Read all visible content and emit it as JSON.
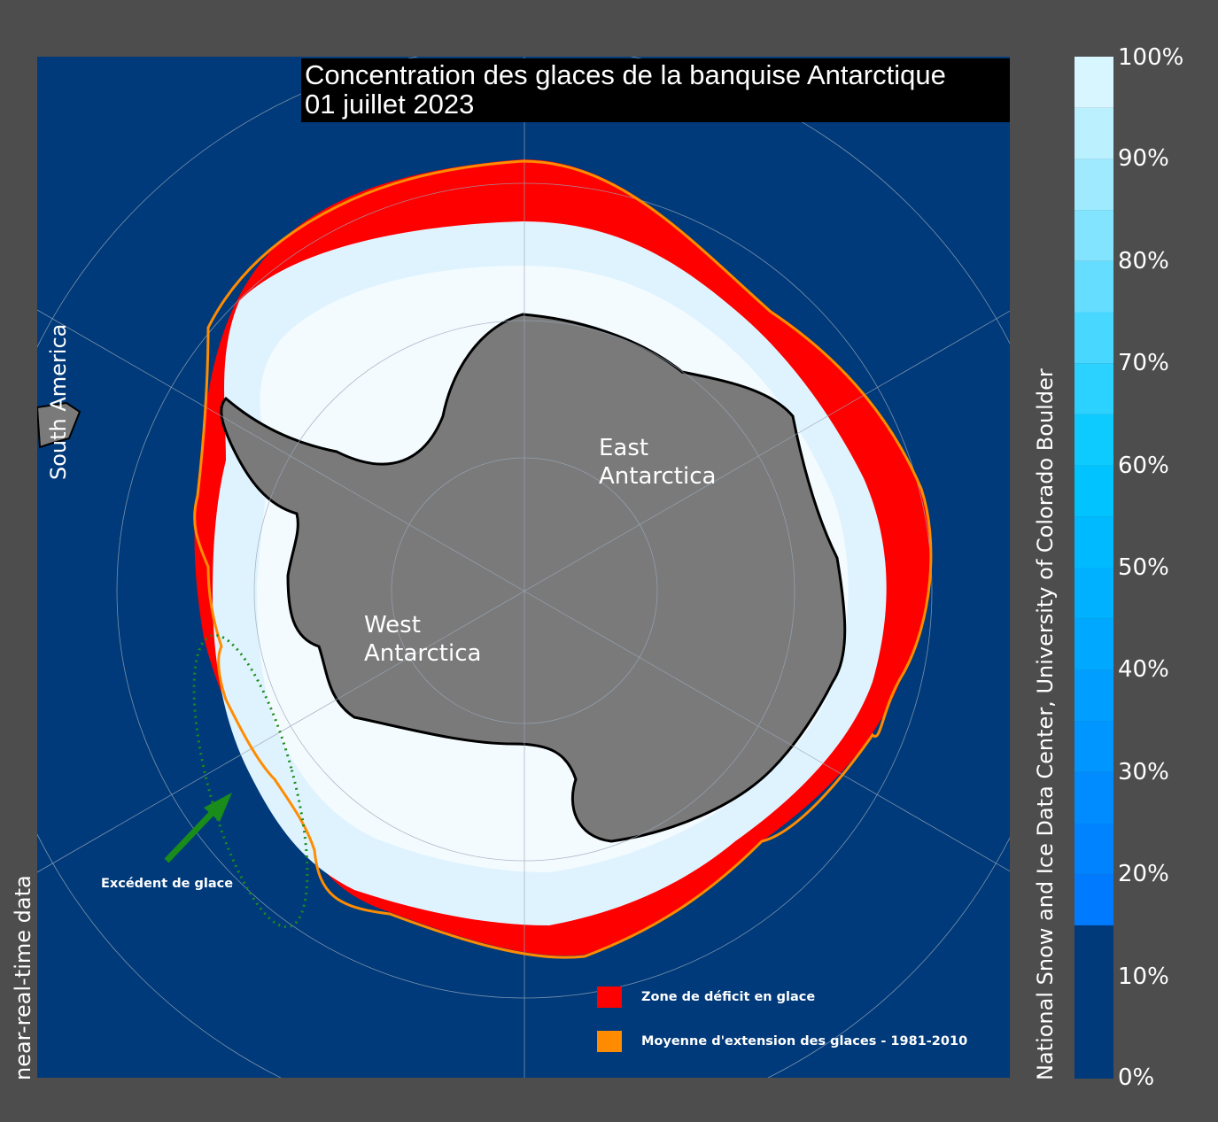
{
  "title": {
    "line1": "Concentration des glaces de la banquise Antarctique",
    "line2": "01 juillet 2023"
  },
  "regions": {
    "east": [
      "East",
      "Antarctica"
    ],
    "west": [
      "West",
      "Antarctica"
    ],
    "south_america": "South America"
  },
  "side_labels": {
    "left": "near-real-time data",
    "right": "National Snow and Ice Data Center, University of Colorado Boulder"
  },
  "annotation": {
    "text": "Excédent de glace",
    "color": "#1a8c1a"
  },
  "legend": {
    "items": [
      {
        "label": "Zone de déficit en glace",
        "color": "#ff0000"
      },
      {
        "label": "Moyenne d'extension des glaces - 1981-2010",
        "color": "#ff8c00"
      }
    ]
  },
  "colorbar": {
    "tick_labels": [
      "100%",
      "90%",
      "80%",
      "70%",
      "60%",
      "50%",
      "40%",
      "30%",
      "20%",
      "10%",
      "0%"
    ],
    "min": 0,
    "max": 100,
    "threshold": 15,
    "ocean_color": "#003a7a",
    "land_color": "#7a7a7a"
  }
}
